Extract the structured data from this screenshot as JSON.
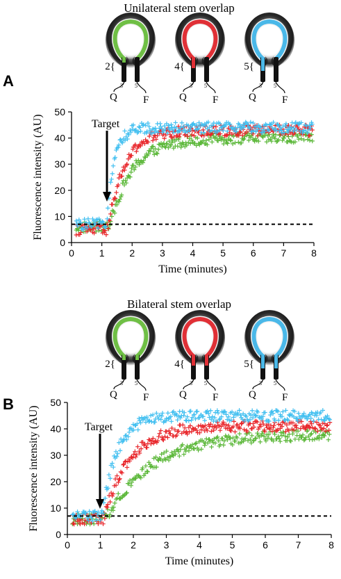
{
  "colors": {
    "green": "#5cb83a",
    "red": "#e8262b",
    "cyan": "#41bff0",
    "black": "#000000"
  },
  "panels": [
    {
      "letter": "A",
      "header": "Unilateral stem overlap",
      "probes": [
        {
          "overlap": "2{",
          "color": "#6fbf45",
          "quencher": "Q",
          "fluor": "F",
          "end3": "3'",
          "end5": "5'"
        },
        {
          "overlap": "4{",
          "color": "#e03036",
          "quencher": "Q",
          "fluor": "F",
          "end3": "3'",
          "end5": "5'"
        },
        {
          "overlap": "5{",
          "color": "#4ab8e8",
          "quencher": "Q",
          "fluor": "F",
          "end3": "3'",
          "end5": "5'"
        }
      ],
      "annotation": "Target"
    },
    {
      "letter": "B",
      "header": "Bilateral stem overlap",
      "probes": [
        {
          "overlap": "2{",
          "color": "#6fbf45",
          "quencher": "Q",
          "fluor": "F",
          "end3": "3'",
          "end5": "5'"
        },
        {
          "overlap": "4{",
          "color": "#e03036",
          "quencher": "Q",
          "fluor": "F",
          "end3": "3'",
          "end5": "5'"
        },
        {
          "overlap": "5{",
          "color": "#4ab8e8",
          "quencher": "Q",
          "fluor": "F",
          "end3": "3'",
          "end5": "5'"
        }
      ],
      "annotation": "Target"
    }
  ],
  "chart_data": [
    {
      "type": "scatter",
      "xlabel": "Time (minutes)",
      "ylabel": "Fluorescence intensity (AU)",
      "xlim": [
        0,
        8
      ],
      "ylim": [
        0,
        50
      ],
      "xticks": [
        "0",
        "1",
        "2",
        "3",
        "4",
        "5",
        "6",
        "7",
        "8"
      ],
      "yticks": [
        "0",
        "10",
        "20",
        "30",
        "40",
        "50"
      ],
      "baseline": 7,
      "target_time": 1.2,
      "series": [
        {
          "color": "green",
          "baseline": 6,
          "onset": 1.25,
          "plateau": 40,
          "tau": 0.75
        },
        {
          "color": "red",
          "baseline": 5,
          "onset": 1.2,
          "plateau": 43,
          "tau": 0.55
        },
        {
          "color": "cyan",
          "baseline": 7,
          "onset": 1.15,
          "plateau": 44,
          "tau": 0.25
        }
      ]
    },
    {
      "type": "scatter",
      "xlabel": "Time (minutes)",
      "ylabel": "Fluorescence intensity (AU)",
      "xlim": [
        0,
        8
      ],
      "ylim": [
        0,
        50
      ],
      "xticks": [
        "0",
        "1",
        "2",
        "3",
        "4",
        "5",
        "6",
        "7",
        "8"
      ],
      "yticks": [
        "0",
        "10",
        "20",
        "30",
        "40",
        "50"
      ],
      "baseline": 7,
      "target_time": 1.0,
      "series": [
        {
          "color": "green",
          "baseline": 6,
          "onset": 1.15,
          "plateau": 38,
          "tau": 1.4
        },
        {
          "color": "red",
          "baseline": 6,
          "onset": 1.1,
          "plateau": 41,
          "tau": 0.75
        },
        {
          "color": "cyan",
          "baseline": 7,
          "onset": 1.05,
          "plateau": 45,
          "tau": 0.45
        }
      ]
    }
  ]
}
